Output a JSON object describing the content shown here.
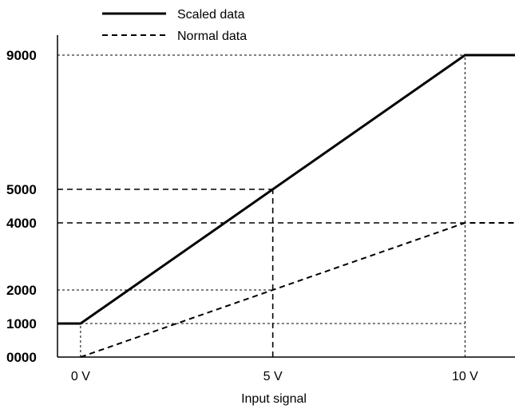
{
  "chart_data": {
    "type": "line",
    "xlabel": "Input signal",
    "ylabel": "",
    "x_ticks": [
      {
        "value": 0,
        "label": "0 V"
      },
      {
        "value": 5,
        "label": "5 V"
      },
      {
        "value": 10,
        "label": "10 V"
      }
    ],
    "y_ticks": [
      {
        "value": 0,
        "label": "0000"
      },
      {
        "value": 1000,
        "label": "1000"
      },
      {
        "value": 2000,
        "label": "2000"
      },
      {
        "value": 4000,
        "label": "4000"
      },
      {
        "value": 5000,
        "label": "5000"
      },
      {
        "value": 9000,
        "label": "9000"
      }
    ],
    "xlim": [
      -0.6,
      11.3
    ],
    "ylim": [
      0,
      9000
    ],
    "grid": "dotted reference lines at key points",
    "legend_position": "top-left",
    "series": [
      {
        "name": "Scaled data",
        "line_style": "solid",
        "color": "#000000",
        "x": [
          -0.6,
          0,
          10,
          11.3
        ],
        "y": [
          1000,
          1000,
          9000,
          9000
        ]
      },
      {
        "name": "Normal data",
        "line_style": "dashed",
        "color": "#000000",
        "x": [
          0,
          10,
          11.3
        ],
        "y": [
          0,
          4000,
          4000
        ]
      }
    ],
    "reference_lines": [
      {
        "kind": "h",
        "y": 9000,
        "x_from": -0.6,
        "x_to": 10,
        "style": "dotted"
      },
      {
        "kind": "h",
        "y": 5000,
        "x_from": -0.6,
        "x_to": 5,
        "style": "dashed"
      },
      {
        "kind": "h",
        "y": 4000,
        "x_from": -0.6,
        "x_to": 10,
        "style": "dashed"
      },
      {
        "kind": "h",
        "y": 2000,
        "x_from": -0.6,
        "x_to": 5,
        "style": "dotted"
      },
      {
        "kind": "h",
        "y": 1000,
        "x_from": 0,
        "x_to": 10,
        "style": "dotted"
      },
      {
        "kind": "v",
        "x": 0,
        "y_from": 0,
        "y_to": 1000,
        "style": "dotted"
      },
      {
        "kind": "v",
        "x": 5,
        "y_from": 0,
        "y_to": 5000,
        "style": "dashed"
      },
      {
        "kind": "v",
        "x": 10,
        "y_from": 0,
        "y_to": 9000,
        "style": "dotted"
      }
    ]
  }
}
